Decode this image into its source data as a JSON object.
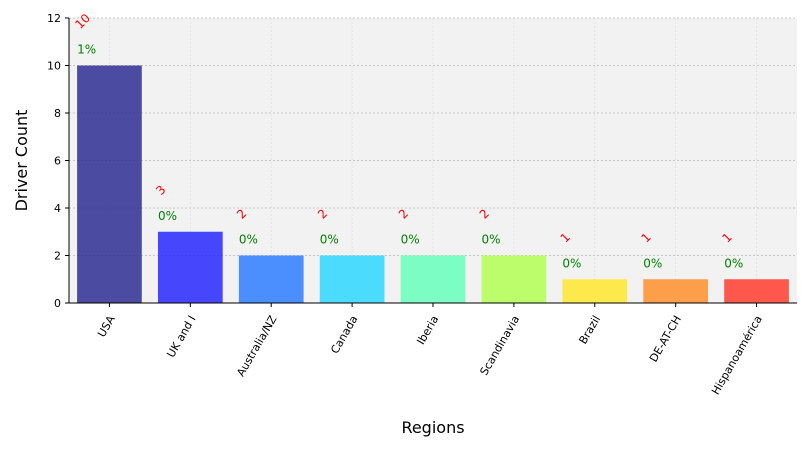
{
  "chart_data": {
    "type": "bar",
    "categories": [
      "USA",
      "UK and I",
      "Australia/NZ",
      "Canada",
      "Iberia",
      "Scandinavia",
      "Brazil",
      "DE-AT-CH",
      "Hispanoamérica"
    ],
    "values": [
      10,
      3,
      2,
      2,
      2,
      2,
      1,
      1,
      1
    ],
    "count_labels": [
      "10",
      "3",
      "2",
      "2",
      "2",
      "2",
      "1",
      "1",
      "1"
    ],
    "percent_labels": [
      "1%",
      "0%",
      "0%",
      "0%",
      "0%",
      "0%",
      "0%",
      "0%",
      "0%"
    ],
    "bar_colors": [
      "#2e2e94",
      "#2828ff",
      "#2e7dff",
      "#2ed8ff",
      "#66ffbb",
      "#b3ff55",
      "#ffe82e",
      "#ff8f2e",
      "#ff3d2e"
    ],
    "title": "",
    "xlabel": "Regions",
    "ylabel": "Driver Count",
    "ylim": [
      0,
      12
    ],
    "yticks": [
      0,
      2,
      4,
      6,
      8,
      10,
      12
    ],
    "grid": true,
    "background": "#f2f2f2"
  }
}
